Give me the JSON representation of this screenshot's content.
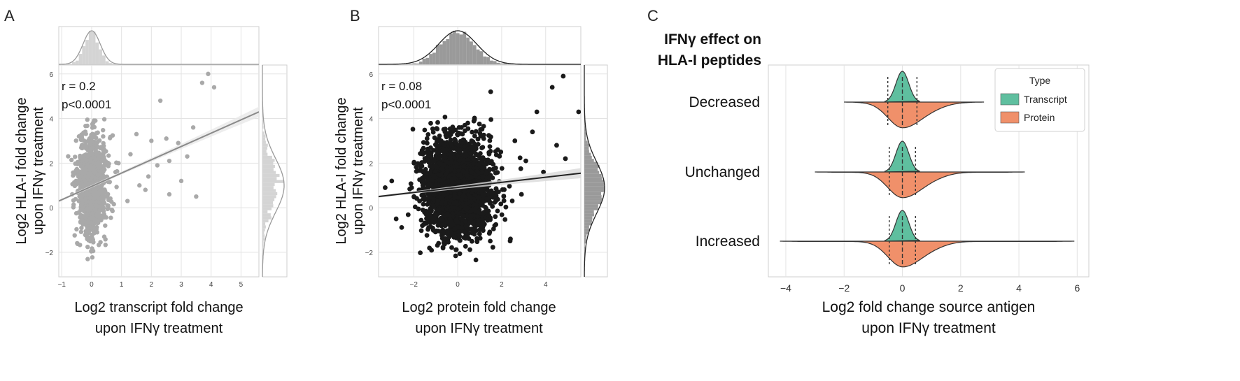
{
  "panel_labels": [
    "A",
    "B",
    "C"
  ],
  "chart_data": [
    {
      "panel": "A",
      "type": "scatter",
      "xlabel": [
        "Log2 transcript fold change",
        "upon IFNγ treatment"
      ],
      "ylabel": [
        "Log2 HLA-I fold change",
        "upon IFNγ treatment"
      ],
      "xlim": [
        -1.1,
        5.6
      ],
      "ylim": [
        -3.1,
        6.4
      ],
      "xticks": [
        -1,
        0,
        1,
        2,
        3,
        4,
        5
      ],
      "yticks": [
        -2,
        0,
        2,
        4,
        6
      ],
      "annotations": [
        "r = 0.2",
        "p<0.0001"
      ],
      "regression": {
        "x": [
          -1.1,
          5.6
        ],
        "y": [
          0.3,
          4.3
        ]
      },
      "bulk_cloud": {
        "x_center": 0.0,
        "x_spread": 0.25,
        "y_center": 1.0,
        "y_spread": 1.1,
        "y_range": [
          -2.6,
          4.2
        ]
      },
      "outliers": [
        {
          "x": 3.9,
          "y": 6.0
        },
        {
          "x": 3.7,
          "y": 5.6
        },
        {
          "x": 2.3,
          "y": 4.8
        },
        {
          "x": 4.1,
          "y": 5.4
        },
        {
          "x": 3.4,
          "y": 3.6
        },
        {
          "x": 2.9,
          "y": 2.9
        },
        {
          "x": 2.0,
          "y": 3.0
        },
        {
          "x": 2.6,
          "y": 2.1
        },
        {
          "x": 3.5,
          "y": 0.5
        },
        {
          "x": 2.6,
          "y": 0.6
        },
        {
          "x": 1.9,
          "y": 1.4
        },
        {
          "x": 1.3,
          "y": 2.4
        },
        {
          "x": 1.6,
          "y": 1.0
        },
        {
          "x": 1.2,
          "y": 0.3
        },
        {
          "x": 0.9,
          "y": 2.0
        },
        {
          "x": 2.2,
          "y": 1.9
        },
        {
          "x": 3.0,
          "y": 1.2
        },
        {
          "x": 1.5,
          "y": 3.3
        },
        {
          "x": 0.8,
          "y": 1.6
        },
        {
          "x": 1.8,
          "y": 0.8
        },
        {
          "x": 2.5,
          "y": 3.1
        },
        {
          "x": 3.2,
          "y": 2.3
        }
      ],
      "color": "#a9a9a9"
    },
    {
      "panel": "B",
      "type": "scatter",
      "xlabel": [
        "Log2 protein fold change",
        "upon IFNγ treatment"
      ],
      "ylabel": [
        "Log2 HLA-I fold change",
        "upon IFNγ treatment"
      ],
      "xlim": [
        -3.6,
        5.6
      ],
      "ylim": [
        -3.1,
        6.4
      ],
      "xticks": [
        -2,
        0,
        2,
        4
      ],
      "yticks": [
        -2,
        0,
        2,
        4,
        6
      ],
      "annotations": [
        "r = 0.08",
        "p<0.0001"
      ],
      "regression": {
        "x": [
          -3.6,
          5.6
        ],
        "y": [
          0.5,
          1.55
        ]
      },
      "bulk_cloud": {
        "x_center": 0.0,
        "x_spread": 0.75,
        "y_center": 0.9,
        "y_spread": 1.05,
        "y_range": [
          -2.5,
          4.3
        ]
      },
      "outliers": [
        {
          "x": 4.8,
          "y": 5.9
        },
        {
          "x": 5.5,
          "y": 4.3
        },
        {
          "x": 4.3,
          "y": 5.4
        },
        {
          "x": 3.6,
          "y": 4.3
        },
        {
          "x": 3.4,
          "y": 3.4
        },
        {
          "x": 1.5,
          "y": 5.2
        },
        {
          "x": 4.5,
          "y": 2.8
        },
        {
          "x": 3.1,
          "y": 2.1
        },
        {
          "x": 3.9,
          "y": 1.6
        },
        {
          "x": -3.3,
          "y": 0.9
        },
        {
          "x": -3.0,
          "y": 1.2
        },
        {
          "x": 2.6,
          "y": 3.0
        },
        {
          "x": 2.9,
          "y": 0.6
        },
        {
          "x": -2.8,
          "y": -0.5
        },
        {
          "x": 2.4,
          "y": -1.4
        },
        {
          "x": 4.9,
          "y": 2.2
        }
      ],
      "color": "#1a1a1a"
    },
    {
      "panel": "C",
      "type": "violin",
      "title": [
        "IFNγ effect on",
        "HLA-I peptides"
      ],
      "categories": [
        "Decreased",
        "Unchanged",
        "Increased"
      ],
      "xlabel": [
        "Log2 fold change source antigen",
        "upon IFNγ treatment"
      ],
      "xlim": [
        -4.6,
        6.4
      ],
      "xticks": [
        -4,
        -2,
        0,
        2,
        4,
        6
      ],
      "legend": {
        "title": "Type",
        "position": "top-right",
        "items": [
          {
            "label": "Transcript",
            "color": "#5fbf9f"
          },
          {
            "label": "Protein",
            "color": "#f0906a"
          }
        ]
      },
      "violins": [
        {
          "category": "Decreased",
          "transcript_range": [
            -0.6,
            0.6
          ],
          "protein_range": [
            -2.0,
            2.8
          ],
          "quartiles": [
            -0.5,
            0.0,
            0.5
          ]
        },
        {
          "category": "Unchanged",
          "transcript_range": [
            -0.6,
            0.6
          ],
          "protein_range": [
            -3.0,
            4.2
          ],
          "quartiles": [
            -0.45,
            0.0,
            0.45
          ]
        },
        {
          "category": "Increased",
          "transcript_range": [
            -0.6,
            0.6
          ],
          "protein_range": [
            -4.2,
            5.9
          ],
          "quartiles": [
            -0.45,
            0.0,
            0.45
          ]
        }
      ]
    }
  ]
}
